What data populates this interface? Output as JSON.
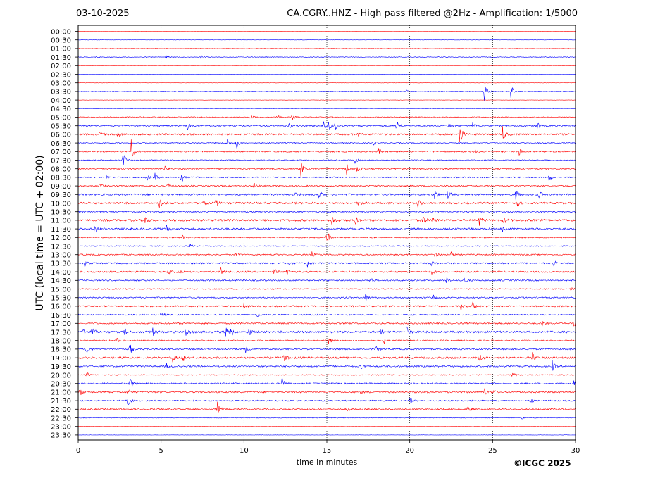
{
  "header": {
    "date": "03-10-2025",
    "title": "CA.CGRY..HNZ - High pass filtered @2Hz - Amplification: 1/5000"
  },
  "footer": {
    "copyright": "©ICGC 2025"
  },
  "chart_data": {
    "type": "line",
    "subtype": "helicorder",
    "xlabel": "time in minutes",
    "ylabel": "UTC (local time = UTC + 02:00)",
    "xlim": [
      0,
      30
    ],
    "x_ticks": [
      0,
      5,
      10,
      15,
      20,
      25,
      30
    ],
    "y_tick_labels": [
      "00:00",
      "00:30",
      "01:00",
      "01:30",
      "02:00",
      "02:30",
      "03:00",
      "03:30",
      "04:00",
      "04:30",
      "05:00",
      "05:30",
      "06:00",
      "06:30",
      "07:00",
      "07:30",
      "08:00",
      "08:30",
      "09:00",
      "09:30",
      "10:00",
      "10:30",
      "11:00",
      "11:30",
      "12:00",
      "12:30",
      "13:00",
      "13:30",
      "14:00",
      "14:30",
      "15:00",
      "15:30",
      "16:00",
      "16:30",
      "17:00",
      "17:30",
      "18:00",
      "18:30",
      "19:00",
      "19:30",
      "20:00",
      "20:30",
      "21:00",
      "21:30",
      "22:00",
      "22:30",
      "23:00",
      "23:30"
    ],
    "trace_colors": [
      "#ff0000",
      "#0000ff"
    ],
    "grid": "vertical dotted at 5-minute intervals",
    "noise_levels": [
      0.2,
      0.2,
      0.3,
      0.5,
      0.2,
      0.2,
      0.2,
      0.4,
      0.2,
      0.3,
      0.7,
      1.0,
      1.2,
      0.7,
      1.0,
      0.7,
      1.0,
      0.8,
      0.9,
      1.2,
      1.3,
      1.0,
      1.4,
      1.3,
      0.8,
      0.7,
      0.9,
      1.0,
      1.1,
      0.9,
      0.8,
      0.9,
      1.0,
      0.8,
      1.0,
      1.4,
      0.9,
      1.0,
      1.3,
      1.1,
      0.7,
      1.0,
      1.1,
      0.9,
      1.0,
      0.5,
      0.2,
      0.2
    ],
    "events": [
      {
        "row": 3,
        "t": 5.3,
        "a": 3
      },
      {
        "row": 3,
        "t": 7.4,
        "a": 3
      },
      {
        "row": 7,
        "t": 24.5,
        "a": 16
      },
      {
        "row": 7,
        "t": 26.1,
        "a": 12
      },
      {
        "row": 7,
        "t": 19.8,
        "a": 4
      },
      {
        "row": 10,
        "t": 12.0,
        "a": 4
      },
      {
        "row": 10,
        "t": 12.9,
        "a": 4
      },
      {
        "row": 10,
        "t": 10.4,
        "a": 3
      },
      {
        "row": 11,
        "t": 6.6,
        "a": 10
      },
      {
        "row": 11,
        "t": 14.8,
        "a": 7
      },
      {
        "row": 11,
        "t": 15.1,
        "a": 7
      },
      {
        "row": 11,
        "t": 15.5,
        "a": 6
      },
      {
        "row": 11,
        "t": 19.2,
        "a": 10
      },
      {
        "row": 11,
        "t": 22.3,
        "a": 6
      },
      {
        "row": 11,
        "t": 23.8,
        "a": 5
      },
      {
        "row": 11,
        "t": 27.7,
        "a": 6
      },
      {
        "row": 11,
        "t": 12.7,
        "a": 6
      },
      {
        "row": 12,
        "t": 1.2,
        "a": 6
      },
      {
        "row": 12,
        "t": 2.4,
        "a": 6
      },
      {
        "row": 12,
        "t": 23.0,
        "a": 22
      },
      {
        "row": 12,
        "t": 25.6,
        "a": 14
      },
      {
        "row": 12,
        "t": 16.8,
        "a": 3
      },
      {
        "row": 13,
        "t": 9.5,
        "a": 12
      },
      {
        "row": 13,
        "t": 9.0,
        "a": 7
      },
      {
        "row": 13,
        "t": 17.8,
        "a": 4
      },
      {
        "row": 14,
        "t": 3.2,
        "a": 18
      },
      {
        "row": 14,
        "t": 18.1,
        "a": 6
      },
      {
        "row": 14,
        "t": 24.0,
        "a": 5
      },
      {
        "row": 14,
        "t": 26.6,
        "a": 5
      },
      {
        "row": 15,
        "t": 2.7,
        "a": 16
      },
      {
        "row": 15,
        "t": 16.7,
        "a": 5
      },
      {
        "row": 16,
        "t": 13.4,
        "a": 14
      },
      {
        "row": 16,
        "t": 16.2,
        "a": 10
      },
      {
        "row": 16,
        "t": 16.8,
        "a": 12
      },
      {
        "row": 16,
        "t": 5.2,
        "a": 4
      },
      {
        "row": 17,
        "t": 6.2,
        "a": 12
      },
      {
        "row": 17,
        "t": 4.6,
        "a": 8
      },
      {
        "row": 17,
        "t": 4.1,
        "a": 6
      },
      {
        "row": 17,
        "t": 28.4,
        "a": 6
      },
      {
        "row": 17,
        "t": 1.7,
        "a": 3
      },
      {
        "row": 18,
        "t": 5.4,
        "a": 5
      },
      {
        "row": 18,
        "t": 1.3,
        "a": 4
      },
      {
        "row": 18,
        "t": 10.6,
        "a": 4
      },
      {
        "row": 19,
        "t": 14.5,
        "a": 7
      },
      {
        "row": 19,
        "t": 21.5,
        "a": 9
      },
      {
        "row": 19,
        "t": 22.3,
        "a": 9
      },
      {
        "row": 19,
        "t": 26.4,
        "a": 8
      },
      {
        "row": 19,
        "t": 27.8,
        "a": 5
      },
      {
        "row": 19,
        "t": 13.0,
        "a": 4
      },
      {
        "row": 20,
        "t": 4.9,
        "a": 6
      },
      {
        "row": 20,
        "t": 7.5,
        "a": 5
      },
      {
        "row": 20,
        "t": 8.3,
        "a": 5
      },
      {
        "row": 20,
        "t": 16.9,
        "a": 5
      },
      {
        "row": 20,
        "t": 20.5,
        "a": 6
      },
      {
        "row": 20,
        "t": 26.5,
        "a": 4
      },
      {
        "row": 22,
        "t": 4.0,
        "a": 8
      },
      {
        "row": 22,
        "t": 15.3,
        "a": 7
      },
      {
        "row": 22,
        "t": 16.7,
        "a": 7
      },
      {
        "row": 22,
        "t": 20.8,
        "a": 8
      },
      {
        "row": 22,
        "t": 21.4,
        "a": 6
      },
      {
        "row": 22,
        "t": 24.2,
        "a": 7
      },
      {
        "row": 22,
        "t": 25.6,
        "a": 7
      },
      {
        "row": 23,
        "t": 1.0,
        "a": 9
      },
      {
        "row": 23,
        "t": 5.3,
        "a": 6
      },
      {
        "row": 23,
        "t": 25.6,
        "a": 5
      },
      {
        "row": 24,
        "t": 15.0,
        "a": 12
      },
      {
        "row": 24,
        "t": 6.3,
        "a": 4
      },
      {
        "row": 25,
        "t": 6.7,
        "a": 5
      },
      {
        "row": 26,
        "t": 21.5,
        "a": 5
      },
      {
        "row": 26,
        "t": 22.5,
        "a": 5
      },
      {
        "row": 26,
        "t": 9.5,
        "a": 4
      },
      {
        "row": 26,
        "t": 14.1,
        "a": 4
      },
      {
        "row": 27,
        "t": 0.4,
        "a": 6
      },
      {
        "row": 27,
        "t": 12.6,
        "a": 5
      },
      {
        "row": 27,
        "t": 13.8,
        "a": 6
      },
      {
        "row": 27,
        "t": 21.3,
        "a": 4
      },
      {
        "row": 27,
        "t": 28.7,
        "a": 5
      },
      {
        "row": 28,
        "t": 5.4,
        "a": 6
      },
      {
        "row": 28,
        "t": 6.0,
        "a": 5
      },
      {
        "row": 28,
        "t": 8.6,
        "a": 7
      },
      {
        "row": 28,
        "t": 11.8,
        "a": 6
      },
      {
        "row": 28,
        "t": 12.6,
        "a": 6
      },
      {
        "row": 28,
        "t": 21.3,
        "a": 4
      },
      {
        "row": 29,
        "t": 17.6,
        "a": 6
      },
      {
        "row": 29,
        "t": 22.2,
        "a": 4
      },
      {
        "row": 29,
        "t": 23.3,
        "a": 5
      },
      {
        "row": 30,
        "t": 29.7,
        "a": 4
      },
      {
        "row": 31,
        "t": 17.3,
        "a": 9
      },
      {
        "row": 31,
        "t": 21.4,
        "a": 4
      },
      {
        "row": 32,
        "t": 10.0,
        "a": 4
      },
      {
        "row": 32,
        "t": 23.1,
        "a": 7
      },
      {
        "row": 32,
        "t": 23.8,
        "a": 7
      },
      {
        "row": 33,
        "t": 5.0,
        "a": 4
      },
      {
        "row": 33,
        "t": 10.8,
        "a": 4
      },
      {
        "row": 34,
        "t": 28.0,
        "a": 5
      },
      {
        "row": 34,
        "t": 29.9,
        "a": 5
      },
      {
        "row": 35,
        "t": 0.3,
        "a": 6
      },
      {
        "row": 35,
        "t": 0.8,
        "a": 11
      },
      {
        "row": 35,
        "t": 2.8,
        "a": 5
      },
      {
        "row": 35,
        "t": 4.5,
        "a": 6
      },
      {
        "row": 35,
        "t": 6.5,
        "a": 6
      },
      {
        "row": 35,
        "t": 8.9,
        "a": 7
      },
      {
        "row": 35,
        "t": 9.2,
        "a": 7
      },
      {
        "row": 35,
        "t": 10.3,
        "a": 6
      },
      {
        "row": 35,
        "t": 18.2,
        "a": 6
      },
      {
        "row": 35,
        "t": 19.8,
        "a": 8
      },
      {
        "row": 36,
        "t": 15.1,
        "a": 6
      },
      {
        "row": 36,
        "t": 18.4,
        "a": 6
      },
      {
        "row": 36,
        "t": 2.3,
        "a": 4
      },
      {
        "row": 37,
        "t": 0.5,
        "a": 7
      },
      {
        "row": 37,
        "t": 3.1,
        "a": 10
      },
      {
        "row": 37,
        "t": 10.1,
        "a": 5
      },
      {
        "row": 37,
        "t": 18.0,
        "a": 6
      },
      {
        "row": 38,
        "t": 5.7,
        "a": 6
      },
      {
        "row": 38,
        "t": 6.3,
        "a": 6
      },
      {
        "row": 38,
        "t": 12.4,
        "a": 6
      },
      {
        "row": 38,
        "t": 24.2,
        "a": 7
      },
      {
        "row": 38,
        "t": 27.4,
        "a": 7
      },
      {
        "row": 39,
        "t": 5.3,
        "a": 5
      },
      {
        "row": 39,
        "t": 17.0,
        "a": 5
      },
      {
        "row": 39,
        "t": 28.6,
        "a": 8
      },
      {
        "row": 40,
        "t": 0.5,
        "a": 4
      },
      {
        "row": 40,
        "t": 26.2,
        "a": 4
      },
      {
        "row": 41,
        "t": 3.1,
        "a": 9
      },
      {
        "row": 41,
        "t": 12.3,
        "a": 9
      },
      {
        "row": 41,
        "t": 29.9,
        "a": 5
      },
      {
        "row": 42,
        "t": 0.1,
        "a": 6
      },
      {
        "row": 42,
        "t": 3.0,
        "a": 5
      },
      {
        "row": 42,
        "t": 16.9,
        "a": 5
      },
      {
        "row": 42,
        "t": 24.5,
        "a": 6
      },
      {
        "row": 42,
        "t": 25.0,
        "a": 5
      },
      {
        "row": 43,
        "t": 2.9,
        "a": 14
      },
      {
        "row": 43,
        "t": 20.0,
        "a": 5
      },
      {
        "row": 43,
        "t": 27.3,
        "a": 4
      },
      {
        "row": 44,
        "t": 8.4,
        "a": 10
      },
      {
        "row": 44,
        "t": 23.5,
        "a": 6
      },
      {
        "row": 44,
        "t": 16.2,
        "a": 4
      },
      {
        "row": 45,
        "t": 26.8,
        "a": 4
      }
    ]
  }
}
